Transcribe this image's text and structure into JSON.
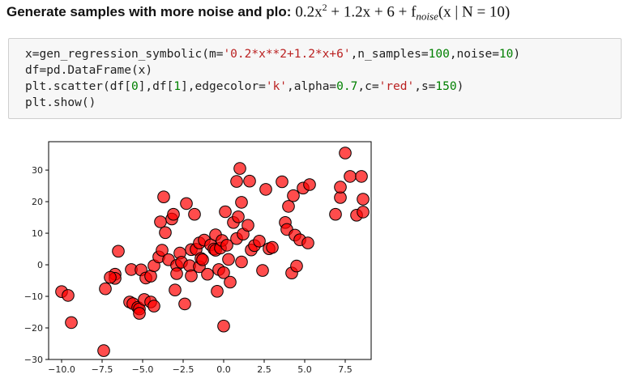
{
  "heading": {
    "text": "Generate samples with more noise and plo:",
    "formula": {
      "part1": "0.2x",
      "exponent": "2",
      "part2": " + 1.2x + 6 + f",
      "subscript": "noise",
      "part3": "(x | N = 10)"
    }
  },
  "code_cell": {
    "lines": [
      [
        {
          "t": "x=gen_regression_symbolic(m="
        },
        {
          "t": "'0.2*x**2+1.2*x+6'",
          "c": "str"
        },
        {
          "t": ",n_samples="
        },
        {
          "t": "100",
          "c": "num"
        },
        {
          "t": ",noise="
        },
        {
          "t": "10",
          "c": "num"
        },
        {
          "t": ")"
        }
      ],
      [
        {
          "t": "df=pd.DataFrame(x)"
        }
      ],
      [
        {
          "t": "plt.scatter(df["
        },
        {
          "t": "0",
          "c": "num"
        },
        {
          "t": "],df["
        },
        {
          "t": "1",
          "c": "num"
        },
        {
          "t": "],edgecolor="
        },
        {
          "t": "'k'",
          "c": "str"
        },
        {
          "t": ",alpha="
        },
        {
          "t": "0.7",
          "c": "num"
        },
        {
          "t": ",c="
        },
        {
          "t": "'red'",
          "c": "str"
        },
        {
          "t": ",s="
        },
        {
          "t": "150",
          "c": "num"
        },
        {
          "t": ")"
        }
      ],
      [
        {
          "t": "plt.show()"
        }
      ]
    ]
  },
  "chart_data": {
    "type": "scatter",
    "title": "",
    "xlabel": "",
    "ylabel": "",
    "xlim": [
      -10.8,
      9.1
    ],
    "ylim": [
      -30,
      39
    ],
    "xticks": [
      -10.0,
      -7.5,
      -5.0,
      -2.5,
      0.0,
      2.5,
      5.0,
      7.5
    ],
    "xtick_labels": [
      "−10.0",
      "−7.5",
      "−5.0",
      "−2.5",
      "0.0",
      "2.5",
      "5.0",
      "7.5"
    ],
    "yticks": [
      -30,
      -20,
      -10,
      0,
      10,
      20,
      30
    ],
    "ytick_labels": [
      "−30",
      "−20",
      "−10",
      "0",
      "10",
      "20",
      "30"
    ],
    "grid": false,
    "marker_color": "#ff0000",
    "edge_color": "#000000",
    "alpha": 0.7,
    "points": [
      [
        -10.0,
        -8.5
      ],
      [
        -9.6,
        -9.7
      ],
      [
        -9.4,
        -18.3
      ],
      [
        -7.4,
        -27.2
      ],
      [
        -7.3,
        -7.6
      ],
      [
        -6.7,
        -3.0
      ],
      [
        -6.7,
        -4.3
      ],
      [
        -6.5,
        4.3
      ],
      [
        -5.8,
        -11.8
      ],
      [
        -5.7,
        -1.5
      ],
      [
        -5.6,
        -12.3
      ],
      [
        -5.3,
        -13.5
      ],
      [
        -5.2,
        -14.0
      ],
      [
        -5.2,
        -15.4
      ],
      [
        -5.1,
        -1.6
      ],
      [
        -4.9,
        -11.0
      ],
      [
        -4.8,
        -4.2
      ],
      [
        -4.5,
        -3.6
      ],
      [
        -4.5,
        -11.8
      ],
      [
        -4.3,
        -13.1
      ],
      [
        -4.3,
        -0.3
      ],
      [
        -4.0,
        2.5
      ],
      [
        -3.9,
        13.6
      ],
      [
        -3.8,
        4.6
      ],
      [
        -3.7,
        21.5
      ],
      [
        -3.6,
        10.2
      ],
      [
        -3.4,
        1.6
      ],
      [
        -3.2,
        14.5
      ],
      [
        -3.1,
        16.0
      ],
      [
        -3.0,
        -8.0
      ],
      [
        -2.9,
        -0.2
      ],
      [
        -2.9,
        -2.8
      ],
      [
        -2.7,
        3.7
      ],
      [
        -2.6,
        0.8
      ],
      [
        -2.4,
        -12.4
      ],
      [
        -2.3,
        19.4
      ],
      [
        -2.1,
        -0.3
      ],
      [
        -2.0,
        4.8
      ],
      [
        -2.0,
        -3.5
      ],
      [
        -1.8,
        16.0
      ],
      [
        -1.7,
        4.9
      ],
      [
        -1.5,
        6.9
      ],
      [
        -1.5,
        -0.6
      ],
      [
        -1.4,
        2.0
      ],
      [
        -1.3,
        1.6
      ],
      [
        -1.2,
        7.8
      ],
      [
        -1.0,
        -3.0
      ],
      [
        -0.8,
        6.3
      ],
      [
        -0.6,
        5.0
      ],
      [
        -0.5,
        9.5
      ],
      [
        -0.5,
        4.6
      ],
      [
        -0.4,
        -8.4
      ],
      [
        -0.3,
        -1.5
      ],
      [
        -0.2,
        5.3
      ],
      [
        -0.1,
        7.7
      ],
      [
        0.0,
        -19.4
      ],
      [
        0.0,
        -2.5
      ],
      [
        0.1,
        16.8
      ],
      [
        0.2,
        6.2
      ],
      [
        0.3,
        1.7
      ],
      [
        0.4,
        -5.5
      ],
      [
        0.6,
        13.4
      ],
      [
        0.8,
        26.4
      ],
      [
        0.8,
        8.3
      ],
      [
        0.9,
        15.2
      ],
      [
        1.0,
        30.5
      ],
      [
        1.1,
        0.9
      ],
      [
        1.1,
        19.8
      ],
      [
        1.2,
        9.7
      ],
      [
        1.5,
        12.5
      ],
      [
        1.6,
        26.5
      ],
      [
        1.7,
        4.7
      ],
      [
        1.9,
        6.1
      ],
      [
        2.2,
        7.5
      ],
      [
        2.4,
        -1.8
      ],
      [
        2.6,
        23.9
      ],
      [
        2.8,
        5.1
      ],
      [
        3.0,
        5.5
      ],
      [
        3.6,
        26.3
      ],
      [
        3.8,
        13.4
      ],
      [
        3.9,
        11.2
      ],
      [
        4.0,
        18.5
      ],
      [
        4.2,
        -2.6
      ],
      [
        4.3,
        21.9
      ],
      [
        4.4,
        9.4
      ],
      [
        4.5,
        -0.4
      ],
      [
        4.7,
        7.9
      ],
      [
        4.9,
        24.3
      ],
      [
        5.2,
        6.9
      ],
      [
        5.3,
        25.4
      ],
      [
        6.9,
        16.0
      ],
      [
        7.2,
        21.3
      ],
      [
        7.2,
        24.6
      ],
      [
        7.5,
        35.4
      ],
      [
        7.8,
        28.0
      ],
      [
        8.2,
        15.7
      ],
      [
        8.5,
        28.0
      ],
      [
        8.6,
        20.8
      ],
      [
        8.6,
        16.7
      ],
      [
        -7.0,
        -4.0
      ]
    ]
  }
}
